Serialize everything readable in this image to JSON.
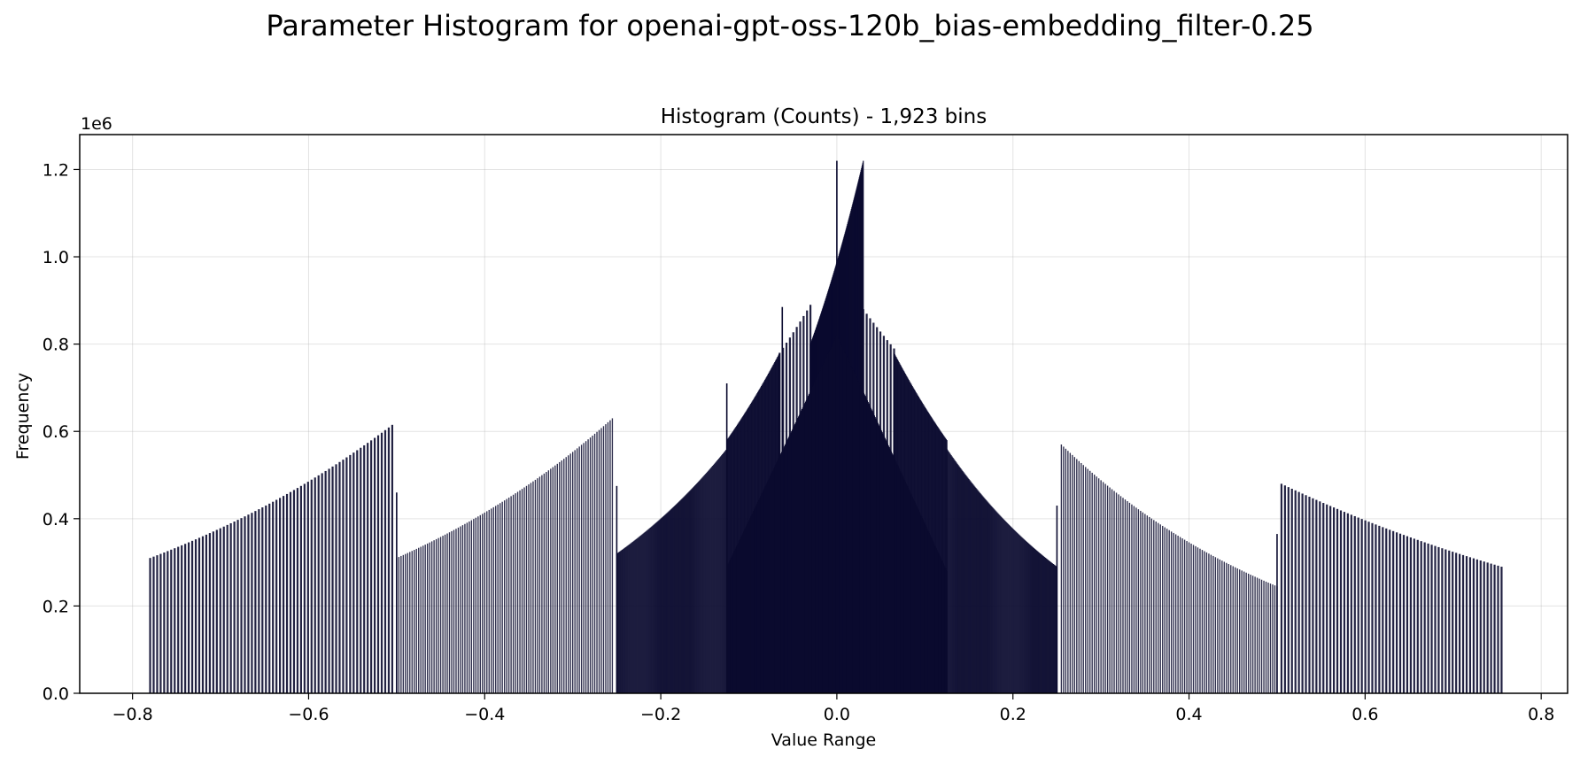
{
  "figure": {
    "suptitle": "Parameter Histogram for openai-gpt-oss-120b_bias-embedding_filter-0.25"
  },
  "chart_data": {
    "type": "bar",
    "title": "Histogram (Counts) - 1,923 bins",
    "xlabel": "Value Range",
    "ylabel": "Frequency",
    "y_offset_label": "1e6",
    "xlim": [
      -0.86,
      0.83
    ],
    "ylim": [
      0,
      1.28
    ],
    "y_scale_factor": 1000000,
    "grid": true,
    "bar_color": "#0a0a2e",
    "x_ticks": [
      {
        "value": -0.8,
        "label": "−0.8"
      },
      {
        "value": -0.6,
        "label": "−0.6"
      },
      {
        "value": -0.4,
        "label": "−0.4"
      },
      {
        "value": -0.2,
        "label": "−0.2"
      },
      {
        "value": 0.0,
        "label": "0.0"
      },
      {
        "value": 0.2,
        "label": "0.2"
      },
      {
        "value": 0.4,
        "label": "0.4"
      },
      {
        "value": 0.6,
        "label": "0.6"
      },
      {
        "value": 0.8,
        "label": "0.8"
      }
    ],
    "y_ticks": [
      {
        "value": 0.0,
        "label": "0.0"
      },
      {
        "value": 0.2,
        "label": "0.2"
      },
      {
        "value": 0.4,
        "label": "0.4"
      },
      {
        "value": 0.6,
        "label": "0.6"
      },
      {
        "value": 0.8,
        "label": "0.8"
      },
      {
        "value": 1.0,
        "label": "1.0"
      },
      {
        "value": 1.2,
        "label": "1.2"
      }
    ],
    "segments": [
      {
        "range": [
          -0.78,
          -0.505
        ],
        "start_freq": 0.31,
        "end_freq": 0.615,
        "step": 0.004
      },
      {
        "range": [
          -0.5,
          -0.255
        ],
        "start_freq": 0.31,
        "end_freq": 0.63,
        "step": 0.0025
      },
      {
        "range": [
          -0.25,
          -0.125
        ],
        "start_freq": 0.32,
        "end_freq": 0.56,
        "step": 0.001
      },
      {
        "range": [
          -0.125,
          -0.065
        ],
        "start_freq": 0.58,
        "end_freq": 0.78,
        "step": 0.0008
      },
      {
        "range": [
          -0.065,
          -0.03
        ],
        "start_freq": 0.78,
        "end_freq": 0.89,
        "step": 0.004
      },
      {
        "range": [
          -0.03,
          0.03
        ],
        "start_freq": 0.8,
        "end_freq": 1.22,
        "step": 0.0005
      },
      {
        "range": [
          0.03,
          0.065
        ],
        "start_freq": 0.88,
        "end_freq": 0.79,
        "step": 0.004
      },
      {
        "range": [
          0.065,
          0.125
        ],
        "start_freq": 0.78,
        "end_freq": 0.58,
        "step": 0.0008
      },
      {
        "range": [
          0.125,
          0.25
        ],
        "start_freq": 0.56,
        "end_freq": 0.29,
        "step": 0.001
      },
      {
        "range": [
          0.255,
          0.5
        ],
        "start_freq": 0.57,
        "end_freq": 0.245,
        "step": 0.0025
      },
      {
        "range": [
          0.505,
          0.755
        ],
        "start_freq": 0.48,
        "end_freq": 0.29,
        "step": 0.004
      }
    ],
    "inner_segments": [
      {
        "range": [
          -0.125,
          0.125
        ],
        "start_freq": 0.29,
        "end_freq": 0.28,
        "peak_freq": 0.82,
        "step": 0.0008
      }
    ],
    "spikes": [
      {
        "x": -0.125,
        "freq": 0.71
      },
      {
        "x": -0.062,
        "freq": 0.885
      },
      {
        "x": -0.5,
        "freq": 0.46
      },
      {
        "x": -0.25,
        "freq": 0.475
      },
      {
        "x": 0.25,
        "freq": 0.43
      },
      {
        "x": 0.5,
        "freq": 0.365
      },
      {
        "x": 0.0,
        "freq": 1.22
      }
    ]
  }
}
